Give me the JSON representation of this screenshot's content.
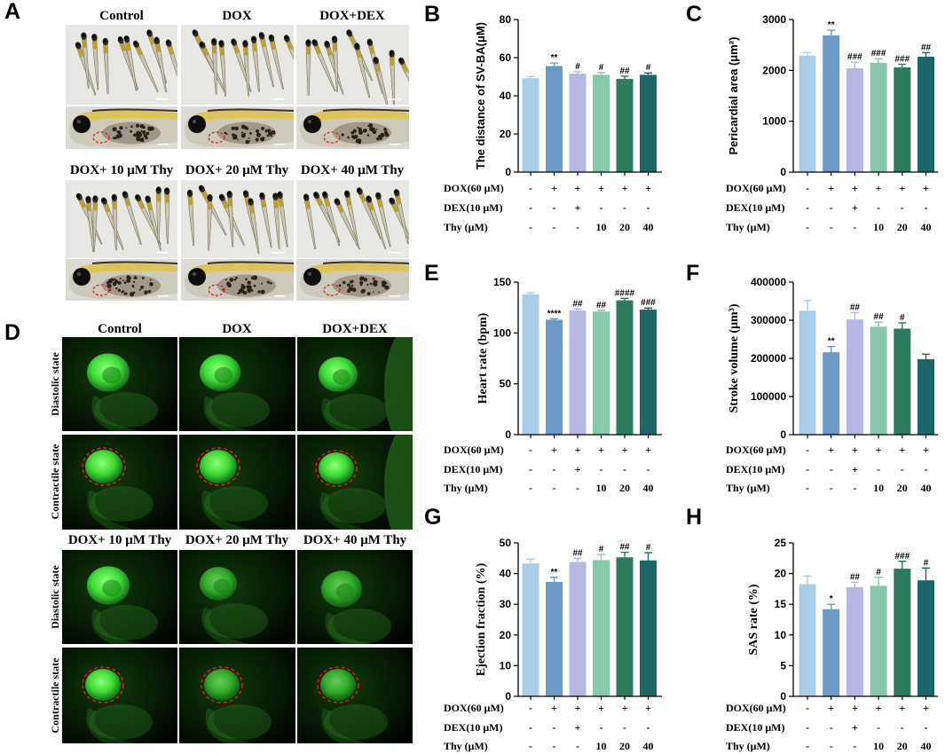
{
  "panel_a": {
    "letter": "A",
    "top_titles": [
      "Control",
      "DOX",
      "DOX+DEX"
    ],
    "bottom_titles": [
      "DOX+ 10 μM Thy",
      "DOX+ 20 μM Thy",
      "DOX+ 40 μM Thy"
    ]
  },
  "panel_d": {
    "letter": "D",
    "top_titles": [
      "Control",
      "DOX",
      "DOX+DEX"
    ],
    "bottom_titles": [
      "DOX+ 10 μM Thy",
      "DOX+ 20 μM Thy",
      "DOX+ 40 μM Thy"
    ],
    "state_labels": [
      "Diastolic state",
      "Contractile state"
    ]
  },
  "colors": {
    "bars": [
      "#a9cce9",
      "#6b99c6",
      "#b4b8e2",
      "#87c8ab",
      "#2e7c60",
      "#1e6769"
    ],
    "heart_outline": "#e41a1a",
    "fluorescence": "#3fdc36"
  },
  "chart_data": [
    {
      "panel": "B",
      "type": "bar",
      "ylabel": "The distance of SV-BA(μM)",
      "ylim": [
        0,
        80
      ],
      "yticks": [
        0,
        20,
        40,
        60,
        80
      ],
      "values": [
        49.2,
        55.6,
        51.6,
        51.0,
        48.9,
        51.0
      ],
      "errors": [
        1.0,
        1.6,
        1.0,
        1.2,
        1.4,
        1.0
      ],
      "annotations": [
        "",
        "**",
        "#",
        "#",
        "##",
        "#"
      ],
      "treatments": [
        {
          "label": "DOX(60 μM)",
          "cells": [
            "-",
            "+",
            "+",
            "+",
            "+",
            "+"
          ]
        },
        {
          "label": "DEX(10 μM)",
          "cells": [
            "-",
            "-",
            "+",
            "-",
            "-",
            "-"
          ]
        },
        {
          "label": "Thy (μM)",
          "cells": [
            "-",
            "-",
            "-",
            "10",
            "20",
            "40"
          ]
        }
      ]
    },
    {
      "panel": "C",
      "type": "bar",
      "ylabel": "Pericardial area (μm²)",
      "ylim": [
        0,
        3000
      ],
      "yticks": [
        0,
        1000,
        2000,
        3000
      ],
      "values": [
        2290,
        2690,
        2040,
        2150,
        2060,
        2270
      ],
      "errors": [
        60,
        100,
        120,
        80,
        60,
        80
      ],
      "annotations": [
        "",
        "**",
        "###",
        "###",
        "###",
        "##"
      ],
      "treatments": [
        {
          "label": "DOX(60 μM)",
          "cells": [
            "-",
            "+",
            "+",
            "+",
            "+",
            "+"
          ]
        },
        {
          "label": "DEX(10 μM)",
          "cells": [
            "-",
            "-",
            "+",
            "-",
            "-",
            "-"
          ]
        },
        {
          "label": "Thy (μM)",
          "cells": [
            "-",
            "-",
            "-",
            "10",
            "20",
            "40"
          ]
        }
      ]
    },
    {
      "panel": "E",
      "type": "bar",
      "ylabel": "Heart rate (bpm)",
      "ylim": [
        0,
        150
      ],
      "yticks": [
        0,
        50,
        100,
        150
      ],
      "values": [
        138,
        113,
        122,
        121,
        132,
        123
      ],
      "errors": [
        1.5,
        1.0,
        1.5,
        1.2,
        2.0,
        1.5
      ],
      "annotations": [
        "",
        "****",
        "##",
        "##",
        "####",
        "###"
      ],
      "treatments": [
        {
          "label": "DOX(60 μM)",
          "cells": [
            "-",
            "+",
            "+",
            "+",
            "+",
            "+"
          ]
        },
        {
          "label": "DEX(10 μM)",
          "cells": [
            "-",
            "-",
            "+",
            "-",
            "-",
            "-"
          ]
        },
        {
          "label": "Thy (μM)",
          "cells": [
            "-",
            "-",
            "-",
            "10",
            "20",
            "40"
          ]
        }
      ]
    },
    {
      "panel": "F",
      "type": "bar",
      "ylabel": "Stroke volume (μm³)",
      "ylim": [
        0,
        400000
      ],
      "yticks": [
        0,
        100000,
        200000,
        300000,
        400000
      ],
      "values": [
        325000,
        216000,
        302000,
        283000,
        278000,
        198000
      ],
      "errors": [
        27000,
        15000,
        18000,
        12000,
        15000,
        13000
      ],
      "annotations": [
        "",
        "**",
        "##",
        "##",
        "#",
        ""
      ],
      "treatments": [
        {
          "label": "DOX(60 μM)",
          "cells": [
            "-",
            "+",
            "+",
            "+",
            "+",
            "+"
          ]
        },
        {
          "label": "DEX(10 μM)",
          "cells": [
            "-",
            "-",
            "+",
            "-",
            "-",
            "-"
          ]
        },
        {
          "label": "Thy (μM)",
          "cells": [
            "-",
            "-",
            "-",
            "10",
            "20",
            "40"
          ]
        }
      ]
    },
    {
      "panel": "G",
      "type": "bar",
      "ylabel": "Ejection fraction (%)",
      "ylim": [
        0,
        50
      ],
      "yticks": [
        0,
        10,
        20,
        30,
        40,
        50
      ],
      "values": [
        43.3,
        37.3,
        43.8,
        44.4,
        45.3,
        44.3
      ],
      "errors": [
        1.4,
        1.5,
        1.2,
        1.8,
        1.6,
        2.5
      ],
      "annotations": [
        "",
        "**",
        "##",
        "#",
        "##",
        "#"
      ],
      "treatments": [
        {
          "label": "DOX(60 μM)",
          "cells": [
            "-",
            "+",
            "+",
            "+",
            "+",
            "+"
          ]
        },
        {
          "label": "DEX(10 μM)",
          "cells": [
            "-",
            "-",
            "+",
            "-",
            "-",
            "-"
          ]
        },
        {
          "label": "Thy (μM)",
          "cells": [
            "-",
            "-",
            "-",
            "10",
            "20",
            "40"
          ]
        }
      ]
    },
    {
      "panel": "H",
      "type": "bar",
      "ylabel": "SAS rate (%)",
      "ylim": [
        0,
        25
      ],
      "yticks": [
        0,
        5,
        10,
        15,
        20,
        25
      ],
      "values": [
        18.3,
        14.2,
        17.8,
        18.0,
        20.8,
        18.9
      ],
      "errors": [
        1.3,
        0.8,
        0.8,
        1.4,
        1.2,
        2.0
      ],
      "annotations": [
        "",
        "*",
        "##",
        "#",
        "###",
        "#"
      ],
      "treatments": [
        {
          "label": "DOX(60 μM)",
          "cells": [
            "-",
            "+",
            "+",
            "+",
            "+",
            "+"
          ]
        },
        {
          "label": "DEX(10 μM)",
          "cells": [
            "-",
            "-",
            "+",
            "-",
            "-",
            "-"
          ]
        },
        {
          "label": "Thy (μM)",
          "cells": [
            "-",
            "-",
            "-",
            "10",
            "20",
            "40"
          ]
        }
      ]
    }
  ]
}
